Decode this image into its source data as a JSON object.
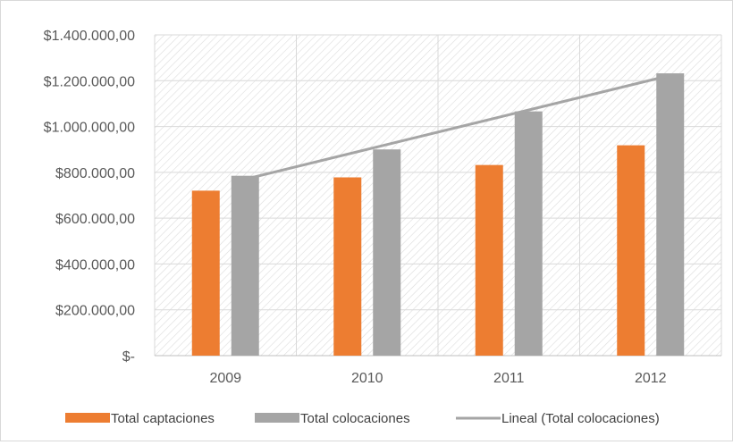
{
  "chart_data": {
    "type": "bar",
    "categories": [
      "2009",
      "2010",
      "2011",
      "2012"
    ],
    "series": [
      {
        "name": "Total captaciones",
        "values": [
          720000,
          778000,
          832000,
          918000
        ],
        "color": "#ed7d31"
      },
      {
        "name": "Total colocaciones",
        "values": [
          785000,
          900000,
          1066000,
          1232000
        ],
        "color": "#a5a5a5"
      }
    ],
    "trendline": {
      "name": "Lineal (Total colocaciones)",
      "values": [
        770000,
        921000,
        1072000,
        1223000
      ],
      "color": "#a5a5a5"
    },
    "ylim": [
      0,
      1400000
    ],
    "yticks": [
      0,
      200000,
      400000,
      600000,
      800000,
      1000000,
      1200000,
      1400000
    ],
    "ytick_labels": [
      "$-",
      "$200.000,00",
      "$400.000,00",
      "$600.000,00",
      "$800.000,00",
      "$1.000.000,00",
      "$1.200.000,00",
      "$1.400.000,00"
    ],
    "grid": true,
    "plot_background": "hatched",
    "legend_position": "bottom"
  }
}
